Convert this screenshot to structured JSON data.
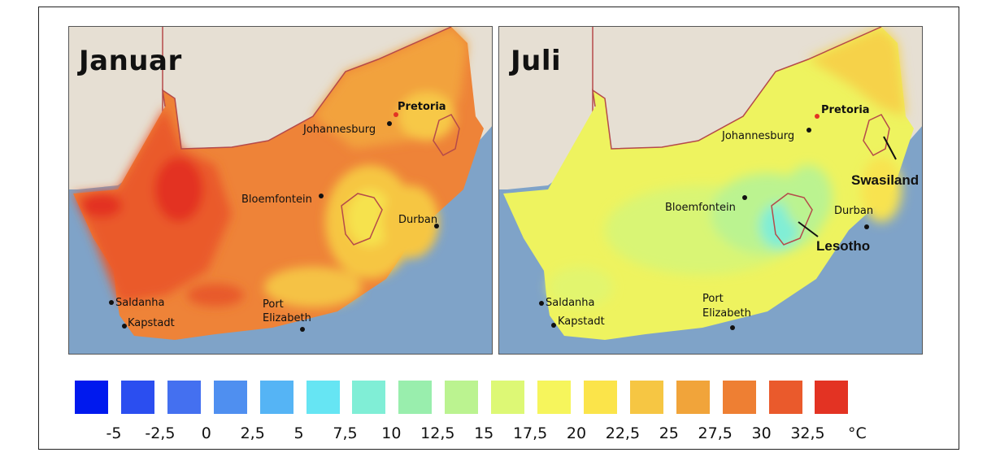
{
  "maps": [
    {
      "title": "Januar",
      "cities": [
        {
          "name": "Pretoria",
          "bold": true
        },
        {
          "name": "Johannesburg"
        },
        {
          "name": "Bloemfontein"
        },
        {
          "name": "Durban"
        },
        {
          "name": "Saldanha"
        },
        {
          "name": "Kapstadt"
        },
        {
          "name": "Port"
        },
        {
          "name": "Elizabeth"
        }
      ]
    },
    {
      "title": "Juli",
      "cities": [
        {
          "name": "Pretoria",
          "bold": true
        },
        {
          "name": "Johannesburg"
        },
        {
          "name": "Bloemfontein"
        },
        {
          "name": "Durban"
        },
        {
          "name": "Saldanha"
        },
        {
          "name": "Kapstadt"
        },
        {
          "name": "Port"
        },
        {
          "name": "Elizabeth"
        }
      ],
      "regions": [
        "Swasiland",
        "Lesotho"
      ]
    }
  ],
  "legend": {
    "swatch_colors": [
      "#0019ee",
      "#2b4ef0",
      "#4470f0",
      "#4f8ff0",
      "#55b4f5",
      "#66e5f3",
      "#80eed6",
      "#99eead",
      "#bbf390",
      "#ddf875",
      "#f6f55c",
      "#fbe44a",
      "#f6c643",
      "#f1a43a",
      "#ee7f33",
      "#ea5a2c",
      "#e33323"
    ],
    "labels": [
      "-5",
      "-2,5",
      "0",
      "2,5",
      "5",
      "7,5",
      "10",
      "12,5",
      "15",
      "17,5",
      "20",
      "22,5",
      "25",
      "27,5",
      "30",
      "32,5",
      "°C"
    ]
  }
}
